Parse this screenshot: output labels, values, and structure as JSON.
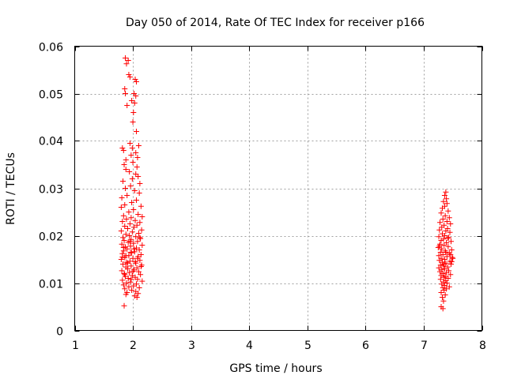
{
  "chart_data": {
    "type": "scatter",
    "title": "Day 050 of 2014, Rate Of TEC Index for receiver p166",
    "xlabel": "GPS time / hours",
    "ylabel": "ROTI / TECUs",
    "xlim": [
      1,
      8
    ],
    "ylim": [
      0,
      0.06
    ],
    "xticks": [
      1,
      2,
      3,
      4,
      5,
      6,
      7,
      8
    ],
    "yticks": [
      0,
      0.01,
      0.02,
      0.03,
      0.04,
      0.05,
      0.06
    ],
    "xtick_labels": [
      "1",
      "2",
      "3",
      "4",
      "5",
      "6",
      "7",
      "8"
    ],
    "ytick_labels": [
      "0",
      "0.01",
      "0.02",
      "0.03",
      "0.04",
      "0.05",
      "0.06"
    ],
    "grid": true,
    "marker": "+",
    "marker_color": "#ff0000",
    "series": [
      {
        "name": "ROTI",
        "points": [
          [
            1.87,
            0.0575
          ],
          [
            1.92,
            0.057
          ],
          [
            1.89,
            0.0563
          ],
          [
            1.93,
            0.054
          ],
          [
            1.95,
            0.0535
          ],
          [
            2.04,
            0.053
          ],
          [
            2.06,
            0.0525
          ],
          [
            1.86,
            0.051
          ],
          [
            1.87,
            0.05
          ],
          [
            2.02,
            0.05
          ],
          [
            2.05,
            0.0495
          ],
          [
            1.98,
            0.0485
          ],
          [
            2.03,
            0.048
          ],
          [
            1.9,
            0.0475
          ],
          [
            2.01,
            0.046
          ],
          [
            2.0,
            0.044
          ],
          [
            2.06,
            0.042
          ],
          [
            1.95,
            0.0395
          ],
          [
            2.1,
            0.039
          ],
          [
            1.82,
            0.0385
          ],
          [
            1.99,
            0.0385
          ],
          [
            1.84,
            0.038
          ],
          [
            2.05,
            0.0375
          ],
          [
            1.97,
            0.037
          ],
          [
            2.08,
            0.0365
          ],
          [
            1.88,
            0.036
          ],
          [
            2.0,
            0.0355
          ],
          [
            1.85,
            0.035
          ],
          [
            2.07,
            0.0345
          ],
          [
            1.88,
            0.034
          ],
          [
            1.94,
            0.0335
          ],
          [
            2.05,
            0.033
          ],
          [
            2.09,
            0.0325
          ],
          [
            1.99,
            0.032
          ],
          [
            1.83,
            0.0315
          ],
          [
            2.12,
            0.031
          ],
          [
            1.96,
            0.0305
          ],
          [
            1.87,
            0.03
          ],
          [
            2.03,
            0.0295
          ],
          [
            2.11,
            0.029
          ],
          [
            1.9,
            0.0285
          ],
          [
            1.81,
            0.028
          ],
          [
            2.06,
            0.0275
          ],
          [
            1.98,
            0.027
          ],
          [
            1.86,
            0.0265
          ],
          [
            2.14,
            0.0262
          ],
          [
            1.8,
            0.026
          ],
          [
            2.01,
            0.0255
          ],
          [
            1.93,
            0.025
          ],
          [
            2.09,
            0.0245
          ],
          [
            1.84,
            0.0242
          ],
          [
            2.16,
            0.024
          ],
          [
            1.97,
            0.0238
          ],
          [
            1.89,
            0.0235
          ],
          [
            2.04,
            0.0232
          ],
          [
            1.82,
            0.023
          ],
          [
            2.12,
            0.0228
          ],
          [
            1.95,
            0.0225
          ],
          [
            2.07,
            0.0222
          ],
          [
            1.86,
            0.022
          ],
          [
            2.02,
            0.0218
          ],
          [
            1.91,
            0.0215
          ],
          [
            2.15,
            0.0212
          ],
          [
            1.8,
            0.021
          ],
          [
            1.99,
            0.0208
          ],
          [
            2.1,
            0.0205
          ],
          [
            1.88,
            0.0203
          ],
          [
            1.94,
            0.02
          ],
          [
            2.05,
            0.0198
          ],
          [
            1.83,
            0.0196
          ],
          [
            2.13,
            0.0194
          ],
          [
            1.97,
            0.0192
          ],
          [
            1.85,
            0.019
          ],
          [
            2.08,
            0.0188
          ],
          [
            1.92,
            0.0186
          ],
          [
            2.01,
            0.0184
          ],
          [
            1.81,
            0.0182
          ],
          [
            2.16,
            0.018
          ],
          [
            1.96,
            0.0178
          ],
          [
            1.87,
            0.0176
          ],
          [
            2.06,
            0.0174
          ],
          [
            1.9,
            0.0172
          ],
          [
            2.11,
            0.017
          ],
          [
            1.84,
            0.0168
          ],
          [
            2.03,
            0.0166
          ],
          [
            1.98,
            0.0164
          ],
          [
            1.82,
            0.0162
          ],
          [
            2.14,
            0.016
          ],
          [
            1.93,
            0.0158
          ],
          [
            2.09,
            0.0156
          ],
          [
            1.86,
            0.0154
          ],
          [
            2.0,
            0.0152
          ],
          [
            1.8,
            0.015
          ],
          [
            2.12,
            0.0148
          ],
          [
            1.95,
            0.0146
          ],
          [
            1.89,
            0.0144
          ],
          [
            2.05,
            0.0142
          ],
          [
            1.83,
            0.014
          ],
          [
            2.15,
            0.0138
          ],
          [
            1.97,
            0.0136
          ],
          [
            1.88,
            0.0134
          ],
          [
            2.07,
            0.0132
          ],
          [
            1.91,
            0.013
          ],
          [
            2.02,
            0.0128
          ],
          [
            1.81,
            0.0126
          ],
          [
            2.1,
            0.0124
          ],
          [
            1.94,
            0.0122
          ],
          [
            1.85,
            0.012
          ],
          [
            2.13,
            0.0118
          ],
          [
            1.99,
            0.0116
          ],
          [
            1.87,
            0.0114
          ],
          [
            2.04,
            0.0112
          ],
          [
            1.92,
            0.011
          ],
          [
            2.08,
            0.0108
          ],
          [
            1.82,
            0.0106
          ],
          [
            2.16,
            0.0104
          ],
          [
            1.96,
            0.0102
          ],
          [
            1.89,
            0.01
          ],
          [
            2.06,
            0.0098
          ],
          [
            1.84,
            0.0096
          ],
          [
            2.01,
            0.0094
          ],
          [
            1.93,
            0.0092
          ],
          [
            2.11,
            0.009
          ],
          [
            1.86,
            0.0088
          ],
          [
            1.98,
            0.0085
          ],
          [
            2.05,
            0.0082
          ],
          [
            1.9,
            0.008
          ],
          [
            2.09,
            0.0078
          ],
          [
            1.88,
            0.0076
          ],
          [
            2.03,
            0.0073
          ],
          [
            2.07,
            0.007
          ],
          [
            1.85,
            0.0052
          ],
          [
            1.95,
            0.0188
          ],
          [
            2.02,
            0.0172
          ],
          [
            1.88,
            0.0158
          ],
          [
            2.12,
            0.0196
          ],
          [
            1.84,
            0.0175
          ],
          [
            1.96,
            0.0165
          ],
          [
            2.08,
            0.0152
          ],
          [
            1.91,
            0.0142
          ],
          [
            2.0,
            0.0125
          ],
          [
            1.86,
            0.0118
          ],
          [
            2.14,
            0.0135
          ],
          [
            1.97,
            0.0108
          ],
          [
            2.04,
            0.0145
          ],
          [
            1.82,
            0.0155
          ],
          [
            7.38,
            0.0292
          ],
          [
            7.36,
            0.0285
          ],
          [
            7.39,
            0.0278
          ],
          [
            7.34,
            0.0272
          ],
          [
            7.4,
            0.0268
          ],
          [
            7.36,
            0.0262
          ],
          [
            7.32,
            0.0258
          ],
          [
            7.42,
            0.0252
          ],
          [
            7.3,
            0.0248
          ],
          [
            7.37,
            0.0242
          ],
          [
            7.44,
            0.0238
          ],
          [
            7.33,
            0.0235
          ],
          [
            7.4,
            0.023
          ],
          [
            7.28,
            0.0228
          ],
          [
            7.46,
            0.0225
          ],
          [
            7.35,
            0.0222
          ],
          [
            7.31,
            0.0218
          ],
          [
            7.41,
            0.0215
          ],
          [
            7.27,
            0.0212
          ],
          [
            7.38,
            0.021
          ],
          [
            7.45,
            0.0207
          ],
          [
            7.32,
            0.0204
          ],
          [
            7.36,
            0.02
          ],
          [
            7.26,
            0.0198
          ],
          [
            7.43,
            0.0196
          ],
          [
            7.34,
            0.0193
          ],
          [
            7.3,
            0.019
          ],
          [
            7.47,
            0.0188
          ],
          [
            7.39,
            0.0185
          ],
          [
            7.28,
            0.0182
          ],
          [
            7.35,
            0.018
          ],
          [
            7.42,
            0.0177
          ],
          [
            7.25,
            0.0175
          ],
          [
            7.31,
            0.0172
          ],
          [
            7.48,
            0.017
          ],
          [
            7.37,
            0.0168
          ],
          [
            7.29,
            0.0165
          ],
          [
            7.44,
            0.0163
          ],
          [
            7.33,
            0.016
          ],
          [
            7.26,
            0.0158
          ],
          [
            7.4,
            0.0156
          ],
          [
            7.49,
            0.0154
          ],
          [
            7.3,
            0.0152
          ],
          [
            7.36,
            0.015
          ],
          [
            7.27,
            0.0148
          ],
          [
            7.45,
            0.0146
          ],
          [
            7.32,
            0.0144
          ],
          [
            7.38,
            0.0142
          ],
          [
            7.47,
            0.014
          ],
          [
            7.29,
            0.0138
          ],
          [
            7.34,
            0.0136
          ],
          [
            7.41,
            0.0134
          ],
          [
            7.26,
            0.0132
          ],
          [
            7.36,
            0.013
          ],
          [
            7.31,
            0.0128
          ],
          [
            7.43,
            0.0126
          ],
          [
            7.28,
            0.0124
          ],
          [
            7.39,
            0.0122
          ],
          [
            7.33,
            0.012
          ],
          [
            7.46,
            0.0118
          ],
          [
            7.3,
            0.0116
          ],
          [
            7.37,
            0.0114
          ],
          [
            7.35,
            0.0112
          ],
          [
            7.42,
            0.011
          ],
          [
            7.29,
            0.0108
          ],
          [
            7.38,
            0.0105
          ],
          [
            7.34,
            0.0102
          ],
          [
            7.4,
            0.01
          ],
          [
            7.31,
            0.0098
          ],
          [
            7.36,
            0.0095
          ],
          [
            7.44,
            0.0092
          ],
          [
            7.33,
            0.009
          ],
          [
            7.39,
            0.0088
          ],
          [
            7.35,
            0.0085
          ],
          [
            7.3,
            0.008
          ],
          [
            7.37,
            0.0075
          ],
          [
            7.32,
            0.007
          ],
          [
            7.34,
            0.0062
          ],
          [
            7.3,
            0.005
          ],
          [
            7.33,
            0.0046
          ],
          [
            7.5,
            0.0152
          ],
          [
            7.48,
            0.0145
          ],
          [
            7.46,
            0.016
          ],
          [
            7.27,
            0.0178
          ],
          [
            7.41,
            0.0195
          ],
          [
            7.38,
            0.0165
          ],
          [
            7.35,
            0.014
          ]
        ]
      }
    ]
  }
}
